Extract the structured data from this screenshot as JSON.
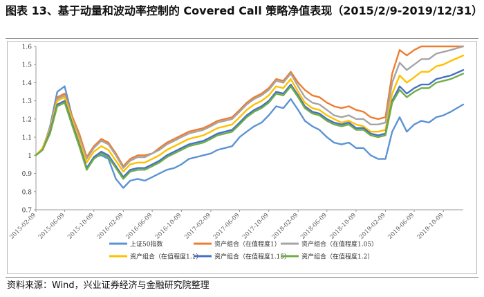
{
  "header": {
    "title": "图表 13、基于动量和波动率控制的 Covered Call 策略净值表现（2015/2/9-2019/12/31）"
  },
  "footer": {
    "source": "资料来源：Wind，兴业证券经济与金融研究院整理"
  },
  "chart_data": {
    "type": "line",
    "title": "",
    "xlabel": "",
    "ylabel": "",
    "ylim": [
      0.7,
      1.6
    ],
    "yticks": [
      "0.7",
      "0.8",
      "0.9",
      "1",
      "1.1",
      "1.2",
      "1.3",
      "1.4",
      "1.5",
      "1.6"
    ],
    "grid": false,
    "legend_position": "bottom",
    "x_tick_labels": [
      "2015-02-09",
      "2015-06-09",
      "2015-10-09",
      "2016-02-09",
      "2016-06-09",
      "2016-10-09",
      "2017-02-09",
      "2017-06-09",
      "2017-10-09",
      "2018-02-09",
      "2018-06-09",
      "2018-10-09",
      "2019-02-09",
      "2019-06-09",
      "2019-10-09"
    ],
    "x": [
      "2015-02-09",
      "2015-03-09",
      "2015-04-09",
      "2015-05-09",
      "2015-06-09",
      "2015-07-09",
      "2015-08-09",
      "2015-09-09",
      "2015-10-09",
      "2015-11-09",
      "2015-12-09",
      "2016-01-09",
      "2016-02-09",
      "2016-03-09",
      "2016-04-09",
      "2016-05-09",
      "2016-06-09",
      "2016-07-09",
      "2016-08-09",
      "2016-09-09",
      "2016-10-09",
      "2016-11-09",
      "2016-12-09",
      "2017-01-09",
      "2017-02-09",
      "2017-03-09",
      "2017-04-09",
      "2017-05-09",
      "2017-06-09",
      "2017-07-09",
      "2017-08-09",
      "2017-09-09",
      "2017-10-09",
      "2017-11-09",
      "2017-12-09",
      "2018-01-09",
      "2018-02-09",
      "2018-03-09",
      "2018-04-09",
      "2018-05-09",
      "2018-06-09",
      "2018-07-09",
      "2018-08-09",
      "2018-09-09",
      "2018-10-09",
      "2018-11-09",
      "2018-12-09",
      "2019-01-09",
      "2019-02-09",
      "2019-03-09",
      "2019-04-09",
      "2019-05-09",
      "2019-06-09",
      "2019-07-09",
      "2019-08-09",
      "2019-09-09",
      "2019-10-09",
      "2019-11-09",
      "2019-12-31"
    ],
    "series": [
      {
        "name": "上证50指数",
        "color": "#5b93d3",
        "values": [
          1.0,
          1.03,
          1.16,
          1.35,
          1.38,
          1.22,
          1.1,
          0.92,
          0.99,
          1.0,
          0.98,
          0.87,
          0.82,
          0.86,
          0.87,
          0.86,
          0.88,
          0.9,
          0.92,
          0.93,
          0.95,
          0.98,
          0.99,
          1.0,
          1.01,
          1.03,
          1.04,
          1.05,
          1.1,
          1.13,
          1.16,
          1.18,
          1.22,
          1.27,
          1.26,
          1.31,
          1.25,
          1.19,
          1.16,
          1.14,
          1.1,
          1.07,
          1.06,
          1.07,
          1.04,
          1.04,
          1.0,
          0.98,
          0.98,
          1.13,
          1.21,
          1.13,
          1.17,
          1.19,
          1.18,
          1.21,
          1.22,
          1.24,
          1.28
        ]
      },
      {
        "name": "资产组合（在值程度1）",
        "color": "#ed7d31",
        "values": [
          1.0,
          1.04,
          1.15,
          1.32,
          1.34,
          1.22,
          1.12,
          0.99,
          1.05,
          1.09,
          1.07,
          1.01,
          0.94,
          0.98,
          1.0,
          1.0,
          1.01,
          1.04,
          1.07,
          1.09,
          1.11,
          1.13,
          1.14,
          1.15,
          1.17,
          1.19,
          1.2,
          1.21,
          1.25,
          1.29,
          1.32,
          1.34,
          1.37,
          1.42,
          1.41,
          1.46,
          1.4,
          1.36,
          1.33,
          1.32,
          1.29,
          1.27,
          1.26,
          1.27,
          1.25,
          1.24,
          1.21,
          1.2,
          1.21,
          1.45,
          1.58,
          1.55,
          1.58,
          1.6,
          1.6,
          1.6,
          1.6,
          1.6,
          1.6
        ]
      },
      {
        "name": "资产组合（在值程度1.05）",
        "color": "#a5a5a5",
        "values": [
          1.0,
          1.04,
          1.15,
          1.31,
          1.33,
          1.21,
          1.1,
          0.98,
          1.04,
          1.08,
          1.06,
          1.0,
          0.93,
          0.97,
          0.99,
          0.99,
          1.01,
          1.03,
          1.06,
          1.08,
          1.1,
          1.12,
          1.13,
          1.14,
          1.16,
          1.18,
          1.19,
          1.2,
          1.24,
          1.28,
          1.31,
          1.33,
          1.36,
          1.41,
          1.4,
          1.45,
          1.38,
          1.32,
          1.29,
          1.28,
          1.25,
          1.22,
          1.21,
          1.22,
          1.2,
          1.2,
          1.17,
          1.17,
          1.18,
          1.4,
          1.51,
          1.47,
          1.5,
          1.53,
          1.53,
          1.56,
          1.57,
          1.58,
          1.6
        ]
      },
      {
        "name": "资产组合（在值程度1.1）",
        "color": "#ffc000",
        "values": [
          1.0,
          1.04,
          1.14,
          1.3,
          1.32,
          1.2,
          1.08,
          0.96,
          1.02,
          1.05,
          1.03,
          0.97,
          0.91,
          0.95,
          0.96,
          0.96,
          0.98,
          1.0,
          1.03,
          1.05,
          1.07,
          1.09,
          1.1,
          1.11,
          1.13,
          1.15,
          1.16,
          1.17,
          1.21,
          1.25,
          1.28,
          1.3,
          1.33,
          1.38,
          1.37,
          1.42,
          1.35,
          1.29,
          1.26,
          1.25,
          1.22,
          1.2,
          1.18,
          1.19,
          1.17,
          1.16,
          1.13,
          1.13,
          1.14,
          1.34,
          1.44,
          1.4,
          1.43,
          1.46,
          1.46,
          1.49,
          1.5,
          1.52,
          1.55
        ]
      },
      {
        "name": "资产组合（在值程度1.15）",
        "color": "#4472c4",
        "values": [
          1.0,
          1.03,
          1.13,
          1.28,
          1.3,
          1.18,
          1.06,
          0.93,
          0.99,
          1.02,
          1.0,
          0.94,
          0.88,
          0.92,
          0.93,
          0.93,
          0.95,
          0.97,
          1.0,
          1.02,
          1.04,
          1.06,
          1.07,
          1.08,
          1.1,
          1.12,
          1.13,
          1.14,
          1.18,
          1.22,
          1.25,
          1.27,
          1.3,
          1.35,
          1.34,
          1.39,
          1.33,
          1.27,
          1.24,
          1.23,
          1.2,
          1.18,
          1.17,
          1.18,
          1.15,
          1.15,
          1.12,
          1.11,
          1.12,
          1.3,
          1.38,
          1.34,
          1.37,
          1.39,
          1.39,
          1.42,
          1.43,
          1.44,
          1.47
        ]
      },
      {
        "name": "资产组合（在值程度1.2）",
        "color": "#70ad47",
        "values": [
          1.0,
          1.03,
          1.12,
          1.27,
          1.29,
          1.17,
          1.05,
          0.92,
          0.98,
          1.01,
          0.99,
          0.93,
          0.87,
          0.91,
          0.92,
          0.92,
          0.94,
          0.96,
          0.99,
          1.01,
          1.03,
          1.05,
          1.06,
          1.07,
          1.09,
          1.11,
          1.12,
          1.13,
          1.17,
          1.21,
          1.24,
          1.26,
          1.29,
          1.34,
          1.33,
          1.38,
          1.32,
          1.26,
          1.23,
          1.22,
          1.19,
          1.17,
          1.16,
          1.17,
          1.14,
          1.14,
          1.11,
          1.1,
          1.11,
          1.29,
          1.36,
          1.32,
          1.35,
          1.37,
          1.37,
          1.4,
          1.41,
          1.42,
          1.45
        ]
      }
    ]
  }
}
